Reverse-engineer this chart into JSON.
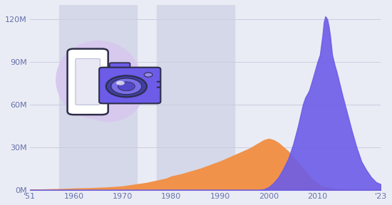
{
  "background_color": "#eaecf5",
  "plot_bg_color": "#eaecf5",
  "stripe_color": "#d5d8e8",
  "orange_color": "#f0924a",
  "purple_color": "#6c5ce7",
  "xlim": [
    1951,
    2023
  ],
  "ylim": [
    0,
    130000000
  ],
  "yticks": [
    0,
    30000000,
    60000000,
    90000000,
    120000000
  ],
  "ytick_labels": [
    "0M",
    "30M",
    "60M",
    "90M",
    "120M"
  ],
  "xticks": [
    1951,
    1960,
    1970,
    1980,
    1990,
    2000,
    2010,
    2023
  ],
  "xtick_labels": [
    "'51",
    "1960",
    "1970",
    "1980",
    "1990",
    "2000",
    "2010",
    "'23"
  ],
  "stripe_ranges": [
    [
      1957,
      1973
    ],
    [
      1977,
      1993
    ]
  ],
  "orange_data": {
    "years": [
      1951,
      1953,
      1955,
      1958,
      1960,
      1963,
      1965,
      1967,
      1970,
      1972,
      1975,
      1977,
      1979,
      1980,
      1982,
      1984,
      1986,
      1988,
      1990,
      1992,
      1994,
      1995,
      1996,
      1997,
      1998,
      1999,
      2000,
      2001,
      2002,
      2003,
      2004,
      2005,
      2006,
      2007,
      2008,
      2009,
      2010,
      2011,
      2012,
      2013,
      2014,
      2015,
      2016,
      2017,
      2018,
      2019,
      2020,
      2021,
      2022,
      2023
    ],
    "values": [
      200000,
      300000,
      500000,
      700000,
      1000000,
      1200000,
      1500000,
      1800000,
      2500000,
      3500000,
      5000000,
      6500000,
      8000000,
      9500000,
      11000000,
      13000000,
      15000000,
      17500000,
      20000000,
      23000000,
      26000000,
      27500000,
      29000000,
      31000000,
      33000000,
      35000000,
      36000000,
      35000000,
      33000000,
      30000000,
      27000000,
      23000000,
      19000000,
      15000000,
      11000000,
      7000000,
      4500000,
      2500000,
      1500000,
      800000,
      400000,
      200000,
      100000,
      50000,
      20000,
      10000,
      5000,
      2000,
      1000,
      500
    ]
  },
  "purple_data": {
    "years": [
      1951,
      1998,
      1999,
      2000,
      2001,
      2002,
      2003,
      2004,
      2005,
      2006,
      2007,
      2007.5,
      2008,
      2008.3,
      2009,
      2010,
      2010.5,
      2011,
      2011.3,
      2011.6,
      2012,
      2012.3,
      2012.6,
      2013,
      2013.5,
      2014,
      2015,
      2016,
      2017,
      2018,
      2019,
      2020,
      2021,
      2022,
      2023
    ],
    "values": [
      0,
      0,
      500000,
      2000000,
      5000000,
      9000000,
      15000000,
      22000000,
      32000000,
      45000000,
      60000000,
      65000000,
      68000000,
      70000000,
      78000000,
      90000000,
      95000000,
      108000000,
      118000000,
      122000000,
      120000000,
      115000000,
      108000000,
      95000000,
      88000000,
      82000000,
      68000000,
      55000000,
      42000000,
      30000000,
      20000000,
      14000000,
      9000000,
      5500000,
      4000000
    ]
  },
  "blob_color": "#d8c8ef",
  "phone_color": "#ffffff",
  "phone_edge_color": "#2d2d4a",
  "camera_color": "#6c5ce7",
  "camera_edge_color": "#2d2d4a"
}
